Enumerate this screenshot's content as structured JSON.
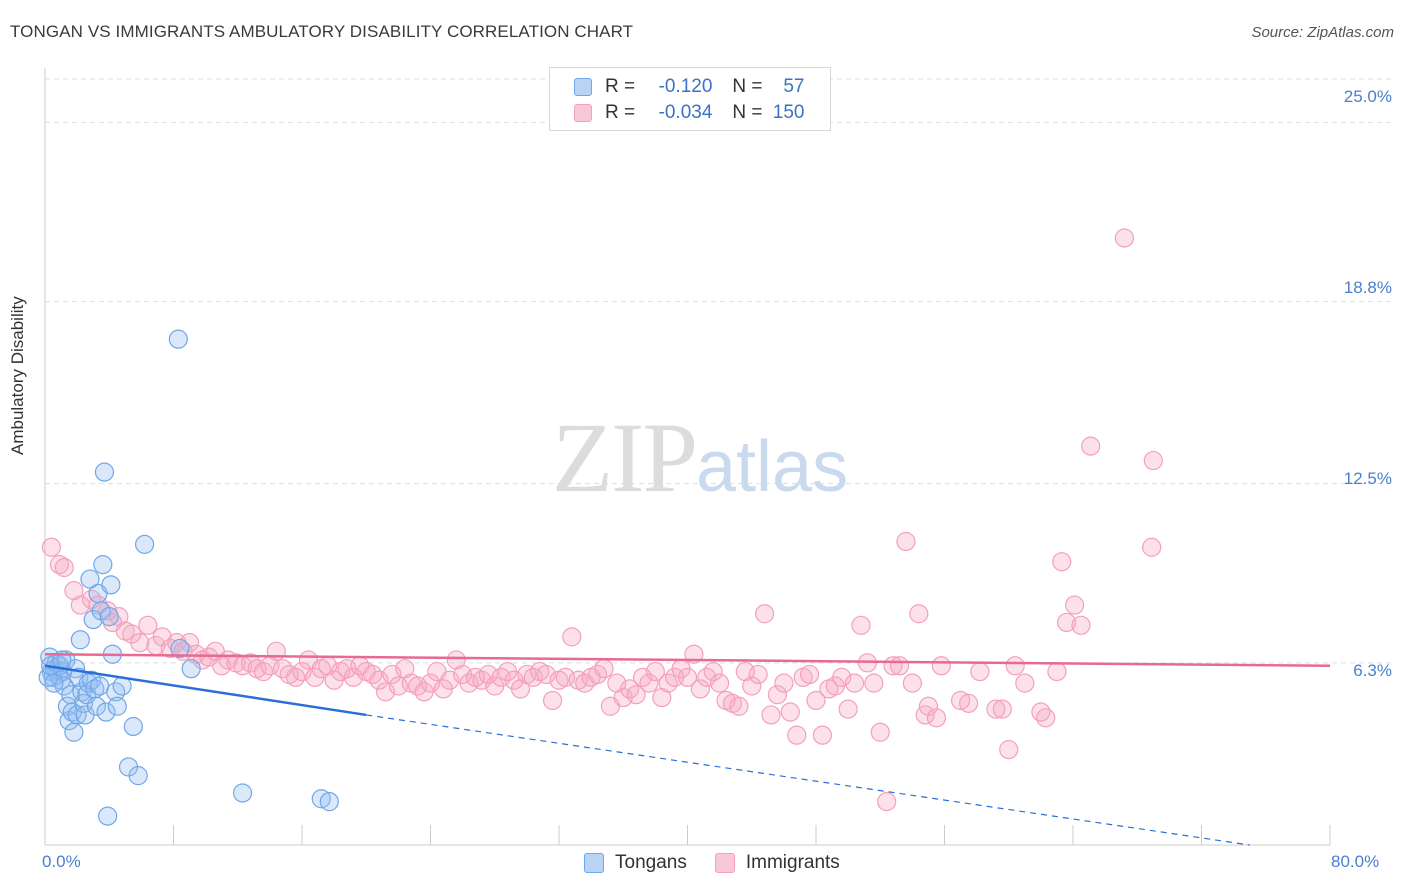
{
  "title": "TONGAN VS IMMIGRANTS AMBULATORY DISABILITY CORRELATION CHART",
  "source": "Source: ZipAtlas.com",
  "watermark": {
    "zip": "ZIP",
    "atlas": "atlas"
  },
  "colors": {
    "tongans": "#6fa8e8",
    "tongans_line": "#2a6fd6",
    "immigrants": "#f4a0bb",
    "immigrants_line": "#e76a92",
    "axis_text": "#4a7fd0",
    "grid": "#dddddd"
  },
  "legend": {
    "rows": [
      {
        "r_label": "R =",
        "r_value": "-0.120",
        "n_label": "N =",
        "n_value": "57"
      },
      {
        "r_label": "R =",
        "r_value": "-0.034",
        "n_label": "N =",
        "n_value": "150"
      }
    ]
  },
  "bottom_legend": [
    "Tongans",
    "Immigrants"
  ],
  "chart_data": {
    "type": "scatter",
    "title": "TONGAN VS IMMIGRANTS AMBULATORY DISABILITY CORRELATION CHART",
    "xlabel": "",
    "ylabel": "Ambulatory Disability",
    "xlim": [
      0,
      80
    ],
    "ylim": [
      0,
      26.5
    ],
    "x_tick_labels": [
      "0.0%",
      "80.0%"
    ],
    "y_ticks": [
      6.3,
      12.5,
      18.8,
      25.0
    ],
    "y_tick_labels": [
      "6.3%",
      "12.5%",
      "18.8%",
      "25.0%"
    ],
    "grid": true,
    "legend_position": "top-center",
    "series": [
      {
        "name": "Tongans",
        "points": [
          [
            0.3,
            6.5
          ],
          [
            0.4,
            6.0
          ],
          [
            0.5,
            5.8
          ],
          [
            0.6,
            6.1
          ],
          [
            0.7,
            6.3
          ],
          [
            0.8,
            5.9
          ],
          [
            0.9,
            6.2
          ],
          [
            1.0,
            5.7
          ],
          [
            1.1,
            6.0
          ],
          [
            1.2,
            5.5
          ],
          [
            1.3,
            6.4
          ],
          [
            1.4,
            4.8
          ],
          [
            1.5,
            4.3
          ],
          [
            1.6,
            5.2
          ],
          [
            1.7,
            4.6
          ],
          [
            1.8,
            3.9
          ],
          [
            1.9,
            6.1
          ],
          [
            2.0,
            4.5
          ],
          [
            2.1,
            5.8
          ],
          [
            2.2,
            7.1
          ],
          [
            2.3,
            5.3
          ],
          [
            2.4,
            4.9
          ],
          [
            2.5,
            4.5
          ],
          [
            2.6,
            5.2
          ],
          [
            2.7,
            5.6
          ],
          [
            2.8,
            9.2
          ],
          [
            2.9,
            5.7
          ],
          [
            3.0,
            7.8
          ],
          [
            3.1,
            5.4
          ],
          [
            3.2,
            4.8
          ],
          [
            3.3,
            8.7
          ],
          [
            3.4,
            5.5
          ],
          [
            3.5,
            8.1
          ],
          [
            3.6,
            9.7
          ],
          [
            3.7,
            12.9
          ],
          [
            3.8,
            4.6
          ],
          [
            3.9,
            1.0
          ],
          [
            4.0,
            7.9
          ],
          [
            4.1,
            9.0
          ],
          [
            4.2,
            6.6
          ],
          [
            4.4,
            5.3
          ],
          [
            4.5,
            4.8
          ],
          [
            4.8,
            5.5
          ],
          [
            5.2,
            2.7
          ],
          [
            5.5,
            4.1
          ],
          [
            5.8,
            2.4
          ],
          [
            6.2,
            10.4
          ],
          [
            8.3,
            17.5
          ],
          [
            8.4,
            6.8
          ],
          [
            9.1,
            6.1
          ],
          [
            12.3,
            1.8
          ],
          [
            17.2,
            1.6
          ],
          [
            17.7,
            1.5
          ],
          [
            0.2,
            5.8
          ],
          [
            0.35,
            6.2
          ],
          [
            0.55,
            5.6
          ],
          [
            1.05,
            6.4
          ]
        ],
        "trend": {
          "x": [
            0,
            20
          ],
          "y": [
            6.2,
            4.5
          ],
          "dashed_to": [
            75,
            0
          ]
        }
      },
      {
        "name": "Immigrants",
        "points": [
          [
            0.4,
            10.3
          ],
          [
            0.9,
            9.7
          ],
          [
            1.2,
            9.6
          ],
          [
            1.8,
            8.8
          ],
          [
            2.2,
            8.3
          ],
          [
            2.9,
            8.5
          ],
          [
            3.3,
            8.3
          ],
          [
            3.9,
            8.1
          ],
          [
            4.2,
            7.7
          ],
          [
            4.6,
            7.9
          ],
          [
            5.0,
            7.4
          ],
          [
            5.4,
            7.3
          ],
          [
            5.9,
            7.0
          ],
          [
            6.4,
            7.6
          ],
          [
            6.9,
            6.9
          ],
          [
            7.3,
            7.2
          ],
          [
            7.8,
            6.8
          ],
          [
            8.2,
            7.0
          ],
          [
            8.6,
            6.7
          ],
          [
            9.0,
            7.0
          ],
          [
            9.4,
            6.6
          ],
          [
            9.8,
            6.4
          ],
          [
            10.2,
            6.5
          ],
          [
            10.6,
            6.7
          ],
          [
            11.0,
            6.2
          ],
          [
            11.4,
            6.4
          ],
          [
            11.9,
            6.3
          ],
          [
            12.3,
            6.2
          ],
          [
            12.8,
            6.3
          ],
          [
            13.2,
            6.1
          ],
          [
            13.6,
            6.0
          ],
          [
            14.0,
            6.2
          ],
          [
            14.4,
            6.7
          ],
          [
            14.8,
            6.1
          ],
          [
            15.2,
            5.9
          ],
          [
            15.6,
            5.8
          ],
          [
            16.0,
            6.0
          ],
          [
            16.4,
            6.4
          ],
          [
            16.8,
            5.8
          ],
          [
            17.2,
            6.1
          ],
          [
            17.6,
            6.2
          ],
          [
            18.0,
            5.7
          ],
          [
            18.4,
            6.0
          ],
          [
            18.8,
            6.1
          ],
          [
            19.2,
            5.8
          ],
          [
            19.6,
            6.2
          ],
          [
            20.0,
            6.0
          ],
          [
            20.4,
            5.9
          ],
          [
            20.8,
            5.7
          ],
          [
            21.2,
            5.3
          ],
          [
            21.6,
            5.9
          ],
          [
            22.0,
            5.5
          ],
          [
            22.4,
            6.1
          ],
          [
            22.8,
            5.6
          ],
          [
            23.2,
            5.5
          ],
          [
            23.6,
            5.3
          ],
          [
            24.0,
            5.6
          ],
          [
            24.4,
            6.0
          ],
          [
            24.8,
            5.4
          ],
          [
            25.2,
            5.7
          ],
          [
            25.6,
            6.4
          ],
          [
            26.0,
            5.9
          ],
          [
            26.4,
            5.6
          ],
          [
            26.8,
            5.8
          ],
          [
            27.2,
            5.7
          ],
          [
            27.6,
            5.9
          ],
          [
            28.0,
            5.5
          ],
          [
            28.4,
            5.8
          ],
          [
            28.8,
            6.0
          ],
          [
            29.2,
            5.7
          ],
          [
            29.6,
            5.4
          ],
          [
            30.0,
            5.9
          ],
          [
            30.4,
            5.8
          ],
          [
            30.8,
            6.0
          ],
          [
            31.2,
            5.9
          ],
          [
            31.6,
            5.0
          ],
          [
            32.0,
            5.7
          ],
          [
            32.4,
            5.8
          ],
          [
            32.8,
            7.2
          ],
          [
            33.2,
            5.7
          ],
          [
            33.6,
            5.6
          ],
          [
            34.0,
            5.8
          ],
          [
            34.4,
            5.9
          ],
          [
            34.8,
            6.1
          ],
          [
            35.2,
            4.8
          ],
          [
            35.6,
            5.6
          ],
          [
            36.0,
            5.1
          ],
          [
            36.4,
            5.4
          ],
          [
            36.8,
            5.2
          ],
          [
            37.2,
            5.8
          ],
          [
            37.6,
            5.6
          ],
          [
            38.0,
            6.0
          ],
          [
            38.4,
            5.1
          ],
          [
            38.8,
            5.6
          ],
          [
            39.2,
            5.8
          ],
          [
            39.6,
            6.1
          ],
          [
            40.0,
            5.8
          ],
          [
            40.4,
            6.6
          ],
          [
            40.8,
            5.4
          ],
          [
            41.2,
            5.8
          ],
          [
            41.6,
            6.0
          ],
          [
            42.0,
            5.6
          ],
          [
            42.4,
            5.0
          ],
          [
            42.8,
            4.9
          ],
          [
            43.2,
            4.8
          ],
          [
            43.6,
            6.0
          ],
          [
            44.0,
            5.5
          ],
          [
            44.4,
            5.9
          ],
          [
            44.8,
            8.0
          ],
          [
            45.2,
            4.5
          ],
          [
            45.6,
            5.2
          ],
          [
            46.0,
            5.6
          ],
          [
            46.4,
            4.6
          ],
          [
            46.8,
            3.8
          ],
          [
            47.2,
            5.8
          ],
          [
            47.6,
            5.9
          ],
          [
            48.0,
            5.0
          ],
          [
            48.4,
            3.8
          ],
          [
            48.8,
            5.4
          ],
          [
            49.2,
            5.5
          ],
          [
            49.6,
            5.8
          ],
          [
            50.0,
            4.7
          ],
          [
            50.4,
            5.6
          ],
          [
            50.8,
            7.6
          ],
          [
            51.2,
            6.3
          ],
          [
            51.6,
            5.6
          ],
          [
            52.0,
            3.9
          ],
          [
            52.4,
            1.5
          ],
          [
            52.8,
            6.2
          ],
          [
            53.2,
            6.2
          ],
          [
            53.6,
            10.5
          ],
          [
            54.0,
            5.6
          ],
          [
            54.4,
            8.0
          ],
          [
            54.8,
            4.5
          ],
          [
            55.0,
            4.8
          ],
          [
            55.5,
            4.4
          ],
          [
            55.8,
            6.2
          ],
          [
            57.0,
            5.0
          ],
          [
            57.5,
            4.9
          ],
          [
            58.2,
            6.0
          ],
          [
            59.2,
            4.7
          ],
          [
            59.6,
            4.7
          ],
          [
            60.0,
            3.3
          ],
          [
            60.4,
            6.2
          ],
          [
            61.0,
            5.6
          ],
          [
            62.0,
            4.6
          ],
          [
            62.3,
            4.4
          ],
          [
            63.0,
            6.0
          ],
          [
            63.3,
            9.8
          ],
          [
            63.6,
            7.7
          ],
          [
            64.1,
            8.3
          ],
          [
            64.5,
            7.6
          ],
          [
            65.1,
            13.8
          ],
          [
            67.2,
            21.0
          ],
          [
            68.9,
            10.3
          ],
          [
            69.0,
            13.3
          ]
        ],
        "trend": {
          "x": [
            0,
            80
          ],
          "y": [
            6.6,
            6.2
          ]
        }
      }
    ]
  }
}
